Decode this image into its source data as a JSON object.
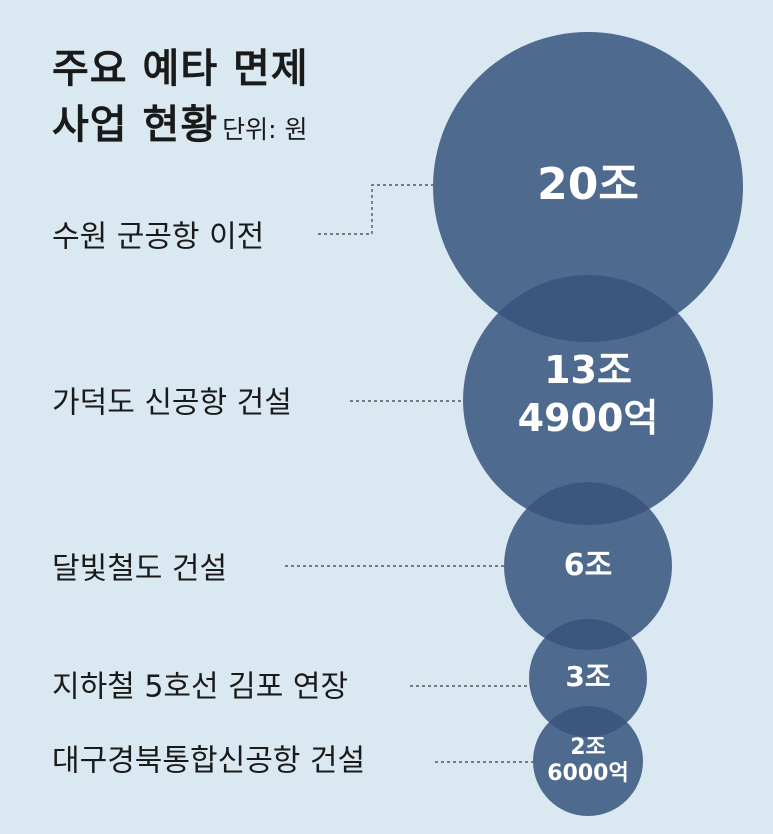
{
  "header": {
    "title_line1": "주요 예타 면제",
    "title_line2": "사업 현황",
    "unit": "단위: 원"
  },
  "chart_data": {
    "type": "bubble",
    "title": "주요 예타 면제 사업 현황",
    "unit": "원",
    "items": [
      {
        "name": "수원 군공항 이전",
        "label_lines": [
          "20조"
        ],
        "value_won": 20000000000000
      },
      {
        "name": "가덕도 신공항 건설",
        "label_lines": [
          "13조",
          "4900억"
        ],
        "value_won": 13490000000000
      },
      {
        "name": "달빛철도 건설",
        "label_lines": [
          "6조"
        ],
        "value_won": 6000000000000
      },
      {
        "name": "지하철 5호선 김포 연장",
        "label_lines": [
          "3조"
        ],
        "value_won": 3000000000000
      },
      {
        "name": "대구경북통합신공항 건설",
        "label_lines": [
          "2조",
          "6000억"
        ],
        "value_won": 2600000000000
      }
    ]
  },
  "colors": {
    "background": "#d9e8f1",
    "bubble": "#4f6a8f",
    "overlap": "#3d5680",
    "leader": "#555555",
    "text": "#1a1a1a"
  }
}
